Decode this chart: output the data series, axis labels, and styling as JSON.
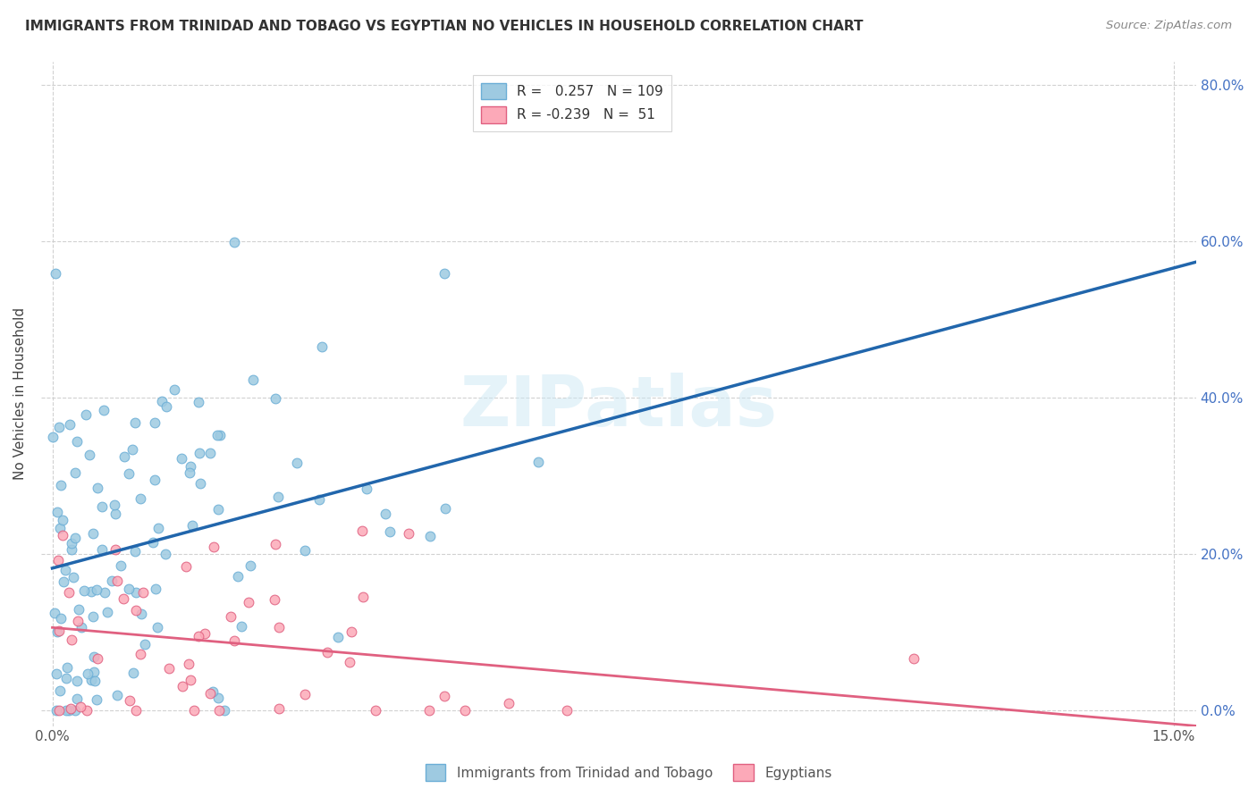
{
  "title": "IMMIGRANTS FROM TRINIDAD AND TOBAGO VS EGYPTIAN NO VEHICLES IN HOUSEHOLD CORRELATION CHART",
  "source": "Source: ZipAtlas.com",
  "ylabel": "No Vehicles in Household",
  "legend1_r": "0.257",
  "legend1_n": "109",
  "legend2_r": "-0.239",
  "legend2_n": "51",
  "blue_color": "#9ecae1",
  "blue_edge": "#6baed6",
  "pink_color": "#fca9b8",
  "pink_edge": "#e06080",
  "trend1_color": "#2166ac",
  "trend2_color": "#e06080",
  "dashed_color": "#aaaaaa",
  "watermark": "ZIPatlas",
  "bg_color": "#ffffff",
  "right_tick_color": "#4472c4",
  "grid_color": "#cccccc",
  "n_blue": 109,
  "n_pink": 51,
  "r_blue": 0.257,
  "r_pink": -0.239,
  "xlim_left": -0.15,
  "xlim_right": 15.3,
  "ylim_bottom": -2,
  "ylim_top": 83,
  "xticks": [
    0,
    15
  ],
  "xticklabels": [
    "0.0%",
    "15.0%"
  ],
  "yticks": [
    0,
    20,
    40,
    60,
    80
  ],
  "yticklabels": [
    "0.0%",
    "20.0%",
    "40.0%",
    "60.0%",
    "80.0%"
  ],
  "legend_bottom_labels": [
    "Immigrants from Trinidad and Tobago",
    "Egyptians"
  ]
}
